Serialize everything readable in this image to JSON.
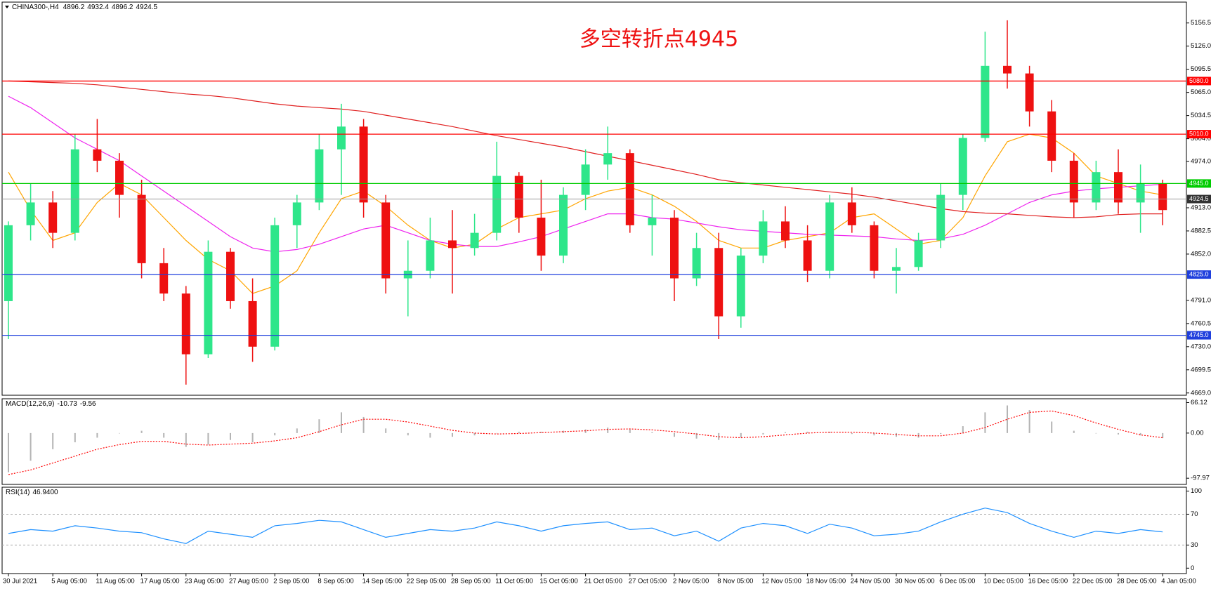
{
  "chart_data": [
    {
      "type": "candlestick",
      "symbol": "CHINA300-,H4",
      "quote": [
        4896.2,
        4932.4,
        4896.2,
        4924.5
      ],
      "annotation": "多空转折点4945",
      "categories": [
        "30 Jul 2021",
        null,
        "5 Aug 05:00",
        null,
        "11 Aug 05:00",
        null,
        "17 Aug 05:00",
        null,
        "23 Aug 05:00",
        null,
        "27 Aug 05:00",
        null,
        "2 Sep 05:00",
        null,
        "8 Sep 05:00",
        null,
        "14 Sep 05:00",
        null,
        "22 Sep 05:00",
        null,
        "28 Sep 05:00",
        null,
        "11 Oct 05:00",
        null,
        "15 Oct 05:00",
        null,
        "21 Oct 05:00",
        null,
        "27 Oct 05:00",
        null,
        "2 Nov 05:00",
        null,
        "8 Nov 05:00",
        null,
        "12 Nov 05:00",
        null,
        "18 Nov 05:00",
        null,
        "24 Nov 05:00",
        null,
        "30 Nov 05:00",
        null,
        "6 Dec 05:00",
        null,
        "10 Dec 05:00",
        null,
        "16 Dec 05:00",
        null,
        "22 Dec 05:00",
        null,
        "28 Dec 05:00",
        null,
        "4 Jan 05:00"
      ],
      "open": [
        4790,
        4890,
        4920,
        4880,
        4990,
        4975,
        4930,
        4840,
        4800,
        4720,
        4855,
        4790,
        4730,
        4890,
        4920,
        4990,
        5020,
        4920,
        4820,
        4830,
        4870,
        4860,
        4880,
        4955,
        4900,
        4850,
        4930,
        4970,
        4985,
        4890,
        4900,
        4820,
        4860,
        4770,
        4850,
        4895,
        4870,
        4830,
        4920,
        4890,
        4830,
        4835,
        4870,
        4930,
        5005,
        5100,
        5090,
        5040,
        4975,
        4920,
        4960,
        4920,
        4945
      ],
      "high": [
        4895,
        4945,
        4935,
        5010,
        5030,
        4985,
        4950,
        4860,
        4810,
        4870,
        4860,
        4820,
        4900,
        4930,
        5010,
        5050,
        5030,
        4930,
        4870,
        4900,
        4910,
        4905,
        5000,
        4960,
        4950,
        4940,
        4990,
        5020,
        4990,
        4930,
        4910,
        4880,
        4880,
        4860,
        4910,
        4915,
        4890,
        4930,
        4940,
        4895,
        4860,
        4880,
        4945,
        5010,
        5145,
        5160,
        5100,
        5055,
        4985,
        4975,
        4990,
        4970,
        4950
      ],
      "low": [
        4740,
        4870,
        4860,
        4870,
        4960,
        4900,
        4820,
        4790,
        4680,
        4715,
        4780,
        4710,
        4725,
        4860,
        4910,
        4930,
        4900,
        4800,
        4770,
        4820,
        4800,
        4850,
        4870,
        4880,
        4830,
        4840,
        4910,
        4950,
        4880,
        4850,
        4790,
        4810,
        4740,
        4755,
        4840,
        4860,
        4815,
        4820,
        4880,
        4820,
        4800,
        4830,
        4860,
        4910,
        5000,
        5070,
        5020,
        4960,
        4900,
        4910,
        4905,
        4880,
        4890
      ],
      "close": [
        4890,
        4920,
        4880,
        4990,
        4975,
        4930,
        4840,
        4800,
        4720,
        4855,
        4790,
        4730,
        4890,
        4920,
        4990,
        5020,
        4920,
        4820,
        4830,
        4870,
        4860,
        4880,
        4955,
        4900,
        4850,
        4930,
        4970,
        4985,
        4890,
        4900,
        4820,
        4860,
        4770,
        4850,
        4895,
        4870,
        4830,
        4920,
        4890,
        4830,
        4835,
        4870,
        4930,
        5005,
        5100,
        5090,
        5040,
        4975,
        4920,
        4960,
        4920,
        4945,
        4910
      ],
      "up_color": "#2ee68a",
      "down_color": "#ee1111",
      "lines": [
        {
          "color": "#ffa500",
          "values": [
            4960,
            4910,
            4870,
            4880,
            4920,
            4945,
            4930,
            4900,
            4870,
            4845,
            4830,
            4800,
            4810,
            4830,
            4880,
            4925,
            4935,
            4915,
            4890,
            4870,
            4860,
            4865,
            4885,
            4900,
            4905,
            4910,
            4925,
            4935,
            4940,
            4930,
            4915,
            4895,
            4870,
            4860,
            4860,
            4870,
            4875,
            4880,
            4900,
            4905,
            4885,
            4865,
            4870,
            4900,
            4955,
            5000,
            5010,
            5005,
            4985,
            4955,
            4945,
            4935,
            4930
          ]
        },
        {
          "color": "#ee22ee",
          "values": [
            5060,
            5045,
            5025,
            5005,
            4990,
            4975,
            4955,
            4935,
            4915,
            4895,
            4875,
            4860,
            4855,
            4858,
            4865,
            4875,
            4885,
            4890,
            4880,
            4870,
            4865,
            4862,
            4862,
            4868,
            4875,
            4885,
            4895,
            4905,
            4905,
            4900,
            4898,
            4893,
            4888,
            4884,
            4882,
            4880,
            4878,
            4877,
            4876,
            4875,
            4872,
            4870,
            4872,
            4878,
            4890,
            4905,
            4920,
            4930,
            4935,
            4938,
            4940,
            4942,
            4944
          ]
        },
        {
          "color": "#e02020",
          "values": [
            5080,
            5079,
            5078,
            5077,
            5075,
            5072,
            5069,
            5066,
            5063,
            5061,
            5058,
            5054,
            5050,
            5047,
            5045,
            5043,
            5040,
            5035,
            5030,
            5025,
            5020,
            5014,
            5008,
            5003,
            4998,
            4993,
            4987,
            4981,
            4975,
            4969,
            4963,
            4957,
            4950,
            4946,
            4943,
            4940,
            4937,
            4934,
            4931,
            4927,
            4922,
            4917,
            4912,
            4908,
            4906,
            4905,
            4903,
            4901,
            4900,
            4901,
            4904,
            4905,
            4905
          ]
        }
      ],
      "levels": [
        {
          "value": 5080,
          "label": "5080.0",
          "color": "#ff0000"
        },
        {
          "value": 5010,
          "label": "5010.0",
          "color": "#ff0000"
        },
        {
          "value": 4945,
          "label": "4945.0",
          "color": "#00cc00"
        },
        {
          "value": 4825,
          "label": "4825.0",
          "color": "#1f3fdd"
        },
        {
          "value": 4745,
          "label": "4745.0",
          "color": "#1f3fdd"
        }
      ],
      "current_price": 4924.5,
      "ylim": [
        4666,
        5184
      ],
      "yticks": [
        5156.5,
        {
          "value": 5126,
          "label": "5126.0"
        },
        5095.5,
        {
          "value": 5065,
          "label": "5065.0"
        },
        5034.5,
        {
          "value": 5004,
          "label": "5004.0"
        },
        {
          "value": 4974,
          "label": "4974.0"
        },
        {
          "value": 4913,
          "label": "4913.0"
        },
        4882.5,
        {
          "value": 4852,
          "label": "4852.0"
        },
        {
          "value": 4791,
          "label": "4791.0"
        },
        4760.5,
        {
          "value": 4730,
          "label": "4730.0"
        },
        4699.5,
        {
          "value": 4669,
          "label": "4669.0"
        }
      ]
    },
    {
      "type": "macd",
      "label": "MACD(12,26,9)",
      "readout": [
        -10.73,
        -9.56
      ],
      "values": [
        -85,
        -60,
        -35,
        -20,
        -10,
        0,
        5,
        -10,
        -30,
        -25,
        -15,
        -20,
        -5,
        10,
        30,
        45,
        35,
        10,
        -5,
        -10,
        -8,
        -5,
        0,
        3,
        3,
        5,
        8,
        12,
        8,
        2,
        -8,
        -12,
        -15,
        -10,
        -3,
        2,
        3,
        3,
        -2,
        -5,
        -8,
        -10,
        -2,
        15,
        45,
        60,
        50,
        25,
        5,
        0,
        -3,
        -5,
        -11
      ],
      "signal": [
        -90,
        -80,
        -65,
        -50,
        -35,
        -25,
        -18,
        -18,
        -24,
        -26,
        -24,
        -22,
        -17,
        -10,
        3,
        18,
        30,
        30,
        24,
        15,
        6,
        0,
        -2,
        -1,
        1,
        3,
        5,
        8,
        9,
        7,
        3,
        -2,
        -8,
        -10,
        -8,
        -4,
        0,
        2,
        2,
        0,
        -3,
        -6,
        -6,
        0,
        12,
        30,
        45,
        48,
        38,
        22,
        8,
        -4,
        -10
      ],
      "hist_color": "#b4b4b4",
      "signal_color": "#ff0000",
      "ylim": [
        -111.4,
        74.5
      ],
      "yticks": [
        66.12,
        {
          "value": 0,
          "label": "0.00"
        },
        -97.97
      ]
    },
    {
      "type": "rsi",
      "label": "RSI(14)",
      "readout": {
        "value": 46.94,
        "label": "46.9400"
      },
      "values": [
        45,
        50,
        48,
        55,
        52,
        48,
        46,
        38,
        32,
        48,
        44,
        40,
        55,
        58,
        62,
        60,
        50,
        40,
        45,
        50,
        48,
        52,
        60,
        55,
        48,
        55,
        58,
        60,
        50,
        52,
        42,
        48,
        35,
        52,
        58,
        55,
        45,
        57,
        52,
        42,
        44,
        48,
        60,
        70,
        78,
        72,
        58,
        48,
        40,
        48,
        45,
        50,
        47
      ],
      "color": "#1e90ff",
      "levels": [
        70,
        30
      ],
      "ylim": [
        -7,
        105
      ],
      "yticks": [
        100,
        70,
        30,
        0
      ]
    }
  ]
}
